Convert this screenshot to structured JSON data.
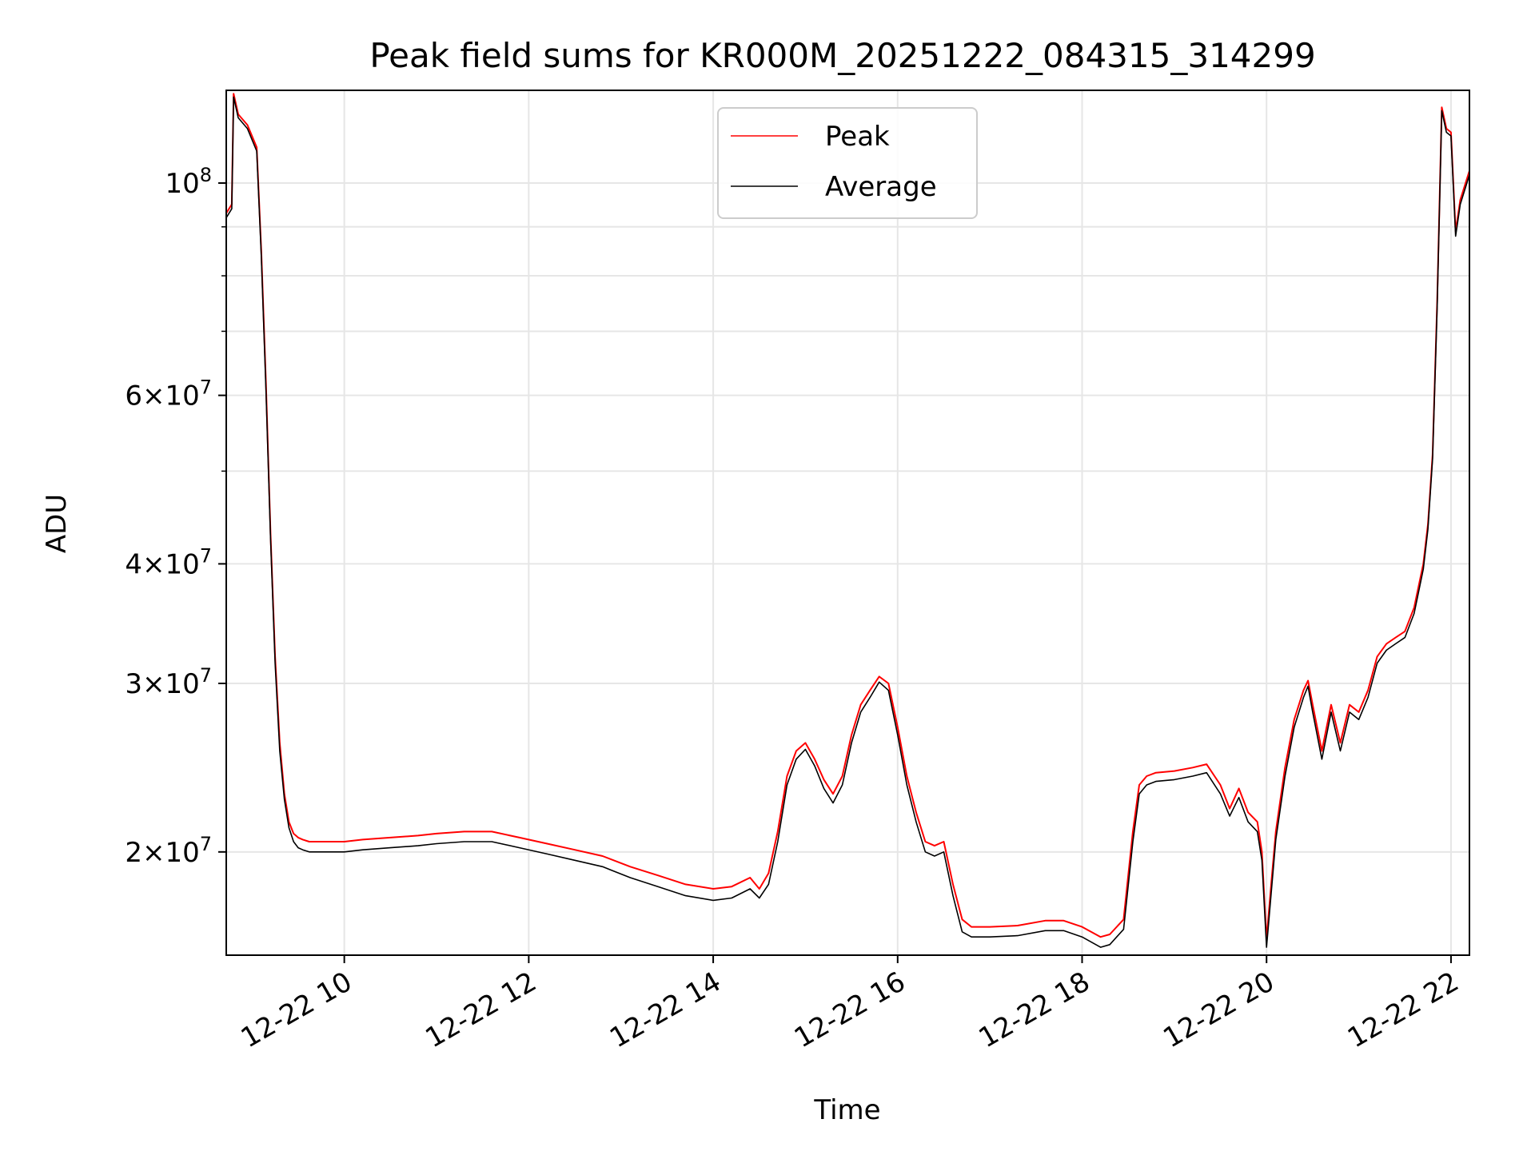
{
  "chart_data": {
    "type": "line",
    "title": "Peak field sums for KR000M_20251222_084315_314299",
    "xlabel": "Time",
    "ylabel": "ADU",
    "yscale": "log",
    "ylim": [
      15600000,
      125000000
    ],
    "xlim": [
      8.72,
      22.2
    ],
    "grid": true,
    "legend_position": "top-center",
    "x_ticks": [
      {
        "value": 10,
        "label": "12-22 10"
      },
      {
        "value": 12,
        "label": "12-22 12"
      },
      {
        "value": 14,
        "label": "12-22 14"
      },
      {
        "value": 16,
        "label": "12-22 16"
      },
      {
        "value": 18,
        "label": "12-22 18"
      },
      {
        "value": 20,
        "label": "12-22 20"
      },
      {
        "value": 22,
        "label": "12-22 22"
      }
    ],
    "y_ticks": [
      {
        "value": 20000000,
        "label_coef": "2",
        "label_exp": "7"
      },
      {
        "value": 30000000,
        "label_coef": "3",
        "label_exp": "7"
      },
      {
        "value": 40000000,
        "label_coef": "4",
        "label_exp": "7"
      },
      {
        "value": 60000000,
        "label_coef": "6",
        "label_exp": "7"
      },
      {
        "value": 100000000,
        "label_coef": "",
        "label_exp": "8"
      }
    ],
    "y_minor_ticks": [
      50000000,
      70000000,
      80000000,
      90000000
    ],
    "x_time_unit": "hours on 2025-12-22",
    "series": [
      {
        "name": "Peak",
        "color": "#ff0000",
        "x": [
          8.72,
          8.78,
          8.8,
          8.85,
          8.95,
          9.05,
          9.1,
          9.15,
          9.2,
          9.25,
          9.3,
          9.35,
          9.4,
          9.45,
          9.5,
          9.55,
          9.62,
          9.8,
          10.0,
          10.2,
          10.5,
          10.8,
          11.0,
          11.3,
          11.6,
          11.9,
          12.2,
          12.5,
          12.8,
          13.1,
          13.4,
          13.7,
          14.0,
          14.2,
          14.4,
          14.5,
          14.6,
          14.7,
          14.8,
          14.9,
          15.0,
          15.1,
          15.2,
          15.3,
          15.4,
          15.5,
          15.6,
          15.7,
          15.8,
          15.9,
          16.0,
          16.1,
          16.2,
          16.3,
          16.4,
          16.5,
          16.6,
          16.7,
          16.8,
          17.0,
          17.3,
          17.6,
          17.8,
          18.0,
          18.2,
          18.3,
          18.45,
          18.55,
          18.62,
          18.7,
          18.8,
          19.0,
          19.2,
          19.35,
          19.5,
          19.6,
          19.7,
          19.8,
          19.9,
          19.95,
          20.0,
          20.05,
          20.1,
          20.2,
          20.3,
          20.4,
          20.45,
          20.5,
          20.6,
          20.7,
          20.8,
          20.9,
          21.0,
          21.1,
          21.2,
          21.3,
          21.4,
          21.5,
          21.6,
          21.7,
          21.75,
          21.8,
          21.85,
          21.9,
          21.95,
          22.0,
          22.05,
          22.1,
          22.2
        ],
        "y": [
          93000000,
          95000000,
          124000000,
          118000000,
          115000000,
          109000000,
          85000000,
          62000000,
          43000000,
          32000000,
          26000000,
          23000000,
          21500000,
          20900000,
          20700000,
          20600000,
          20500000,
          20500000,
          20500000,
          20600000,
          20700000,
          20800000,
          20900000,
          21000000,
          21000000,
          20700000,
          20400000,
          20100000,
          19800000,
          19300000,
          18900000,
          18500000,
          18300000,
          18400000,
          18800000,
          18300000,
          19000000,
          21000000,
          24000000,
          25500000,
          26000000,
          25000000,
          23800000,
          23000000,
          24000000,
          26500000,
          28500000,
          29500000,
          30500000,
          30000000,
          27000000,
          24000000,
          22000000,
          20500000,
          20300000,
          20500000,
          18500000,
          17000000,
          16700000,
          16700000,
          16750000,
          16950000,
          16950000,
          16700000,
          16300000,
          16400000,
          17000000,
          21000000,
          23500000,
          24000000,
          24200000,
          24300000,
          24500000,
          24700000,
          23500000,
          22200000,
          23300000,
          22000000,
          21500000,
          20000000,
          16200000,
          18500000,
          21000000,
          24500000,
          27500000,
          29500000,
          30200000,
          28500000,
          25500000,
          28500000,
          26000000,
          28500000,
          28000000,
          29500000,
          32000000,
          33000000,
          33500000,
          34000000,
          36000000,
          40000000,
          44000000,
          52000000,
          75000000,
          120000000,
          114000000,
          113000000,
          89000000,
          96000000,
          103000000
        ]
      },
      {
        "name": "Average",
        "color": "#000000",
        "x": [
          8.72,
          8.78,
          8.8,
          8.85,
          8.95,
          9.05,
          9.1,
          9.15,
          9.2,
          9.25,
          9.3,
          9.35,
          9.4,
          9.45,
          9.5,
          9.55,
          9.62,
          9.8,
          10.0,
          10.2,
          10.5,
          10.8,
          11.0,
          11.3,
          11.6,
          11.9,
          12.2,
          12.5,
          12.8,
          13.1,
          13.4,
          13.7,
          14.0,
          14.2,
          14.4,
          14.5,
          14.6,
          14.7,
          14.8,
          14.9,
          15.0,
          15.1,
          15.2,
          15.3,
          15.4,
          15.5,
          15.6,
          15.7,
          15.8,
          15.9,
          16.0,
          16.1,
          16.2,
          16.3,
          16.4,
          16.5,
          16.6,
          16.7,
          16.8,
          17.0,
          17.3,
          17.6,
          17.8,
          18.0,
          18.2,
          18.3,
          18.45,
          18.55,
          18.62,
          18.7,
          18.8,
          19.0,
          19.2,
          19.35,
          19.5,
          19.6,
          19.7,
          19.8,
          19.9,
          19.95,
          20.0,
          20.05,
          20.1,
          20.2,
          20.3,
          20.4,
          20.45,
          20.5,
          20.6,
          20.7,
          20.8,
          20.9,
          21.0,
          21.1,
          21.2,
          21.3,
          21.4,
          21.5,
          21.6,
          21.7,
          21.75,
          21.8,
          21.85,
          21.9,
          21.95,
          22.0,
          22.05,
          22.1,
          22.2
        ],
        "y": [
          92000000,
          94000000,
          123000000,
          117000000,
          114000000,
          108000000,
          84000000,
          61000000,
          42500000,
          31500000,
          25500000,
          22700000,
          21200000,
          20500000,
          20200000,
          20100000,
          20000000,
          20000000,
          20000000,
          20100000,
          20200000,
          20300000,
          20400000,
          20500000,
          20500000,
          20200000,
          19900000,
          19600000,
          19300000,
          18800000,
          18400000,
          18000000,
          17800000,
          17900000,
          18300000,
          17900000,
          18500000,
          20500000,
          23500000,
          25000000,
          25600000,
          24600000,
          23300000,
          22500000,
          23500000,
          26000000,
          28000000,
          29000000,
          30100000,
          29500000,
          26500000,
          23500000,
          21500000,
          20000000,
          19800000,
          20000000,
          18000000,
          16500000,
          16300000,
          16300000,
          16350000,
          16550000,
          16550000,
          16300000,
          15900000,
          16000000,
          16600000,
          20500000,
          23000000,
          23500000,
          23700000,
          23800000,
          24000000,
          24200000,
          23000000,
          21800000,
          22800000,
          21500000,
          21000000,
          19600000,
          15900000,
          18100000,
          20600000,
          24000000,
          27000000,
          29000000,
          29800000,
          28000000,
          25000000,
          28000000,
          25500000,
          28000000,
          27500000,
          29000000,
          31500000,
          32500000,
          33000000,
          33500000,
          35500000,
          39500000,
          43500000,
          51500000,
          74000000,
          119000000,
          113000000,
          112000000,
          88000000,
          95000000,
          102000000
        ]
      }
    ]
  }
}
